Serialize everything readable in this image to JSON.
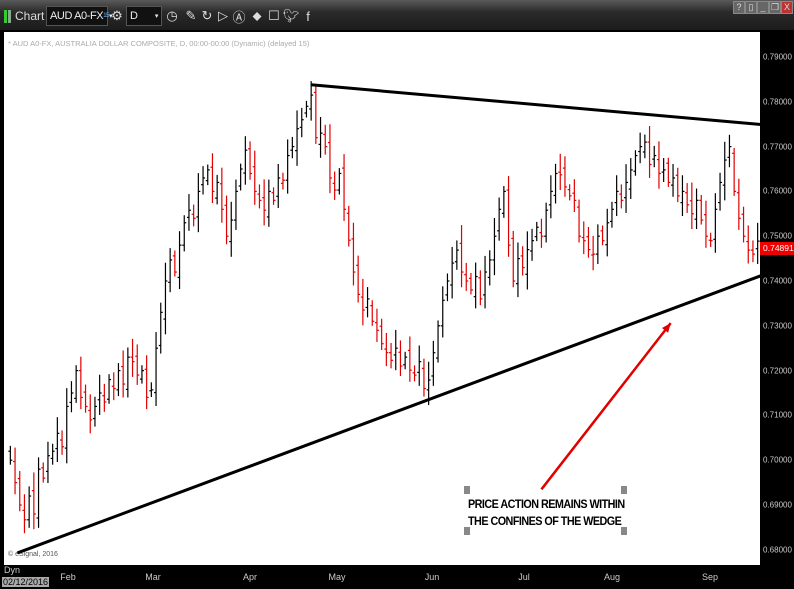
{
  "toolbar": {
    "app_label": "Chart",
    "symbol": "AUD A0-FX",
    "symbol_badge": "15",
    "interval": "D",
    "icons": [
      "gear-icon",
      "clock-icon",
      "pencil-icon",
      "refresh-icon",
      "play-icon",
      "alert-icon",
      "link-icon",
      "comment-icon",
      "twitter-icon",
      "facebook-icon"
    ],
    "window_buttons": [
      "?",
      "▯",
      "_",
      "❐",
      "X"
    ]
  },
  "chart": {
    "description": "* AUD A0-FX, AUSTRALIA DOLLAR COMPOSITE, D, 00:00-00:00 (Dynamic) (delayed 15)",
    "copyright": "© eSignal, 2016",
    "cursor_label": "Dyn",
    "cursor_date": "02/12/2016",
    "last_price": "0.74891",
    "annotation": [
      "PRICE ACTION REMAINS WITHIN",
      "THE CONFINES OF THE WEDGE"
    ]
  },
  "chart_data": {
    "type": "ohlc-bar",
    "y_ticks": [
      "0.79000",
      "0.78000",
      "0.77000",
      "0.76000",
      "0.75000",
      "0.74000",
      "0.73000",
      "0.72000",
      "0.71000",
      "0.70000",
      "0.69000",
      "0.68000"
    ],
    "ylim": [
      0.68,
      0.79
    ],
    "x_ticks": [
      "Feb",
      "Mar",
      "Apr",
      "May",
      "Jun",
      "Jul",
      "Aug",
      "Sep"
    ],
    "colors": {
      "up": "#000000",
      "down": "#e00000",
      "trendline": "#000000",
      "arrow": "#e00000"
    },
    "closes": [
      0.7,
      0.695,
      0.69,
      0.6867,
      0.692,
      0.688,
      0.698,
      0.696,
      0.701,
      0.702,
      0.706,
      0.703,
      0.712,
      0.715,
      0.72,
      0.714,
      0.712,
      0.709,
      0.712,
      0.715,
      0.713,
      0.718,
      0.716,
      0.72,
      0.717,
      0.723,
      0.722,
      0.719,
      0.72,
      0.714,
      0.7157,
      0.725,
      0.733,
      0.74,
      0.7447,
      0.742,
      0.748,
      0.753,
      0.7558,
      0.754,
      0.76,
      0.763,
      0.7648,
      0.76,
      0.762,
      0.756,
      0.75,
      0.7536,
      0.76,
      0.765,
      0.7692,
      0.764,
      0.76,
      0.758,
      0.7558,
      0.76,
      0.758,
      0.763,
      0.7625,
      0.768,
      0.77,
      0.774,
      0.776,
      0.779,
      0.7815,
      0.772,
      0.773,
      0.77,
      0.763,
      0.7603,
      0.764,
      0.756,
      0.7491,
      0.742,
      0.737,
      0.7335,
      0.736,
      0.731,
      0.729,
      0.726,
      0.724,
      0.7223,
      0.725,
      0.721,
      0.723,
      0.7201,
      0.719,
      0.722,
      0.716,
      0.7179,
      0.724,
      0.73,
      0.7357,
      0.74,
      0.744,
      0.7469,
      0.742,
      0.74,
      0.738,
      0.741,
      0.736,
      0.742,
      0.7447,
      0.75,
      0.756,
      0.76,
      0.748,
      0.74,
      0.745,
      0.743,
      0.747,
      0.749,
      0.752,
      0.75,
      0.7558,
      0.76,
      0.764,
      0.7637,
      0.761,
      0.759,
      0.758,
      0.75,
      0.749,
      0.747,
      0.746,
      0.75,
      0.749,
      0.753,
      0.756,
      0.76,
      0.758,
      0.762,
      0.7648,
      0.768,
      0.77,
      0.771,
      0.766,
      0.768,
      0.764,
      0.7648,
      0.762,
      0.763,
      0.759,
      0.76,
      0.757,
      0.755,
      0.758,
      0.7536,
      0.75,
      0.749,
      0.756,
      0.762,
      0.767,
      0.77,
      0.76,
      0.754,
      0.75,
      0.7469,
      0.746,
      0.7489
    ],
    "trendlines": [
      {
        "name": "upper",
        "from": {
          "bar": 64,
          "price": 0.7838
        },
        "to": {
          "bar": 160,
          "price": 0.7749
        }
      },
      {
        "name": "lower",
        "from": {
          "bar": 1.5,
          "price": 0.6793
        },
        "to": {
          "bar": 160,
          "price": 0.7413
        }
      }
    ],
    "arrow": {
      "from": {
        "bar": 113,
        "price": 0.6935
      },
      "to": {
        "bar": 140.5,
        "price": 0.7306
      }
    }
  }
}
